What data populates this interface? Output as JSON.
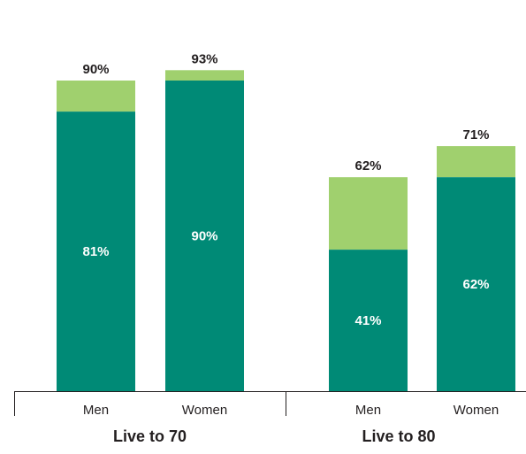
{
  "chart_data": {
    "type": "bar",
    "stacked": true,
    "groups": [
      {
        "label": "Live to 70",
        "bars": [
          {
            "category": "Men",
            "base": 81,
            "total": 90,
            "base_label": "81%",
            "total_label": "90%"
          },
          {
            "category": "Women",
            "base": 90,
            "total": 93,
            "base_label": "90%",
            "total_label": "93%"
          }
        ]
      },
      {
        "label": "Live to 80",
        "bars": [
          {
            "category": "Men",
            "base": 41,
            "total": 62,
            "base_label": "41%",
            "total_label": "62%"
          },
          {
            "category": "Women",
            "base": 62,
            "total": 71,
            "base_label": "62%",
            "total_label": "71%"
          }
        ]
      }
    ],
    "ylim": [
      0,
      100
    ],
    "grid": false,
    "colors": {
      "base": "#008a76",
      "top": "#a0d06e",
      "axis": "#231f20"
    }
  }
}
